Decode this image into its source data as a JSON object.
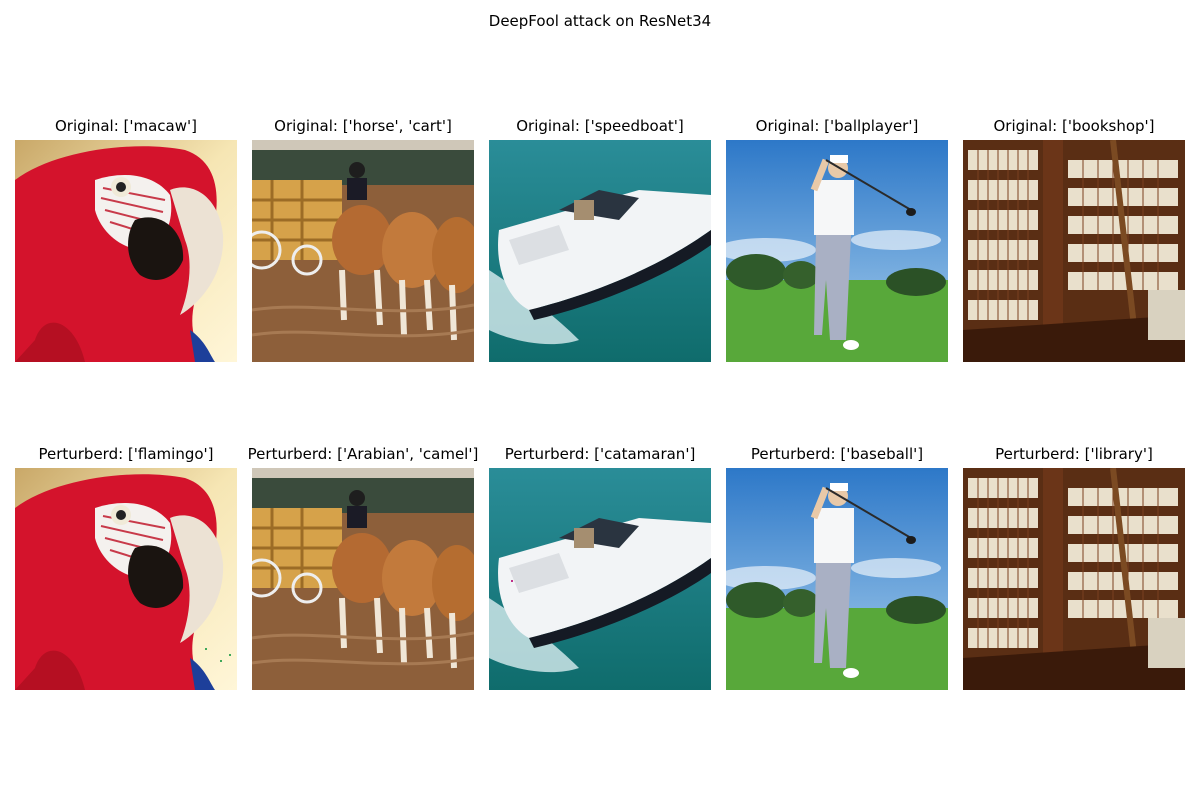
{
  "figure": {
    "title": "DeepFool attack on ResNet34"
  },
  "rows": [
    {
      "prefix": "Original",
      "items": [
        {
          "label": "Original: ['macaw']",
          "picture": "macaw-image"
        },
        {
          "label": "Original: ['horse', 'cart']",
          "picture": "horse-cart-image"
        },
        {
          "label": "Original: ['speedboat']",
          "picture": "speedboat-image"
        },
        {
          "label": "Original: ['ballplayer']",
          "picture": "golfer-image"
        },
        {
          "label": "Original: ['bookshop']",
          "picture": "bookshop-image"
        }
      ]
    },
    {
      "prefix": "Perturberd",
      "items": [
        {
          "label": "Perturberd: ['flamingo']",
          "picture": "macaw-image"
        },
        {
          "label": "Perturberd: ['Arabian', 'camel']",
          "picture": "horse-cart-image"
        },
        {
          "label": "Perturberd: ['catamaran']",
          "picture": "speedboat-image"
        },
        {
          "label": "Perturberd: ['baseball']",
          "picture": "golfer-image"
        },
        {
          "label": "Perturberd: ['library']",
          "picture": "bookshop-image"
        }
      ]
    }
  ]
}
